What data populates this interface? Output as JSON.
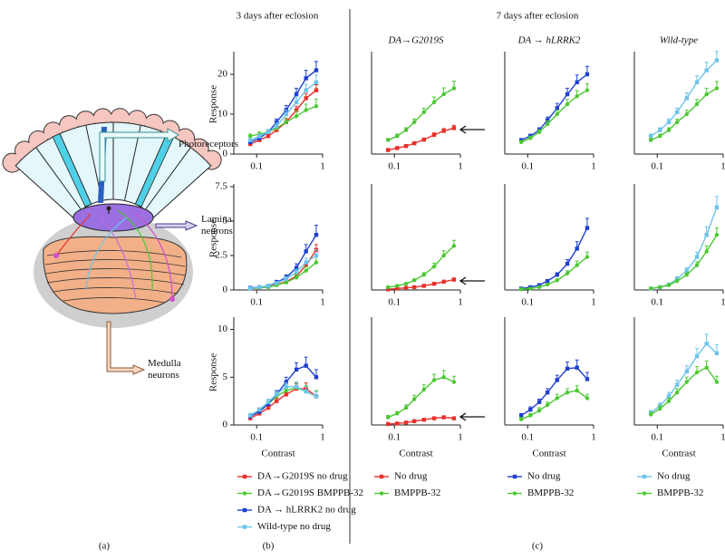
{
  "headers": {
    "day3": "3 days after eclosion",
    "day7": "7 days after eclosion"
  },
  "panel_labels": [
    "(a)",
    "(b)",
    "(c)"
  ],
  "diagram": {
    "labels": [
      "Photoreceptors",
      "Lamina neurons",
      "Medulla neurons"
    ]
  },
  "chart_data": [
    {
      "type": "line",
      "ylabel": "Response",
      "x": [
        0.08,
        0.11,
        0.15,
        0.2,
        0.28,
        0.4,
        0.56,
        0.8
      ],
      "xlim": [
        0.045,
        1
      ],
      "xticks": [
        0.1,
        1
      ],
      "log_x": true,
      "ylim": [
        0,
        25
      ],
      "yticks": [
        0,
        10,
        20
      ],
      "series": [
        {
          "color": "#e8302a",
          "marker": "square",
          "values": [
            2.5,
            3.5,
            4.5,
            6,
            8,
            11,
            14,
            16
          ],
          "errors": [
            0.3,
            0.4,
            0.5,
            0.6,
            0.8,
            1,
            1.2,
            1.4
          ]
        },
        {
          "color": "#4cc832",
          "marker": "circle",
          "values": [
            4.5,
            5,
            5.5,
            6.5,
            8,
            9.5,
            11,
            12
          ],
          "errors": [
            0.5,
            0.5,
            0.6,
            0.8,
            1,
            1.2,
            1.5,
            1.8
          ]
        },
        {
          "color": "#1f3fcf",
          "marker": "square",
          "values": [
            3,
            4,
            5.5,
            8,
            11,
            15,
            19,
            21
          ],
          "errors": [
            0.4,
            0.5,
            0.6,
            0.8,
            1.2,
            1.5,
            2,
            2.2
          ]
        },
        {
          "color": "#6cc4ea",
          "marker": "square",
          "values": [
            3.5,
            4.5,
            5.5,
            7,
            10,
            13,
            16,
            18
          ],
          "errors": [
            0.4,
            0.5,
            0.6,
            0.8,
            1,
            1.3,
            1.5,
            1.8
          ]
        }
      ]
    },
    {
      "type": "line",
      "ylabel": "Response",
      "x": [
        0.08,
        0.11,
        0.15,
        0.2,
        0.28,
        0.4,
        0.56,
        0.8
      ],
      "xlim": [
        0.045,
        1
      ],
      "xticks": [
        0.1,
        1
      ],
      "log_x": true,
      "ylim": [
        0,
        7.5
      ],
      "yticks": [
        0,
        2.5,
        5,
        7.5
      ],
      "series": [
        {
          "color": "#e8302a",
          "marker": "square",
          "values": [
            0.1,
            0.15,
            0.25,
            0.4,
            0.6,
            1,
            1.8,
            2.9
          ],
          "errors": [
            0.05,
            0.05,
            0.08,
            0.1,
            0.15,
            0.2,
            0.3,
            0.4
          ]
        },
        {
          "color": "#4cc832",
          "marker": "circle",
          "values": [
            0.1,
            0.15,
            0.2,
            0.35,
            0.55,
            0.9,
            1.4,
            2
          ],
          "errors": [
            0.05,
            0.05,
            0.08,
            0.1,
            0.15,
            0.2,
            0.3,
            0.4
          ]
        },
        {
          "color": "#1f3fcf",
          "marker": "square",
          "values": [
            0.15,
            0.2,
            0.3,
            0.55,
            0.9,
            1.6,
            2.8,
            4
          ],
          "errors": [
            0.05,
            0.06,
            0.1,
            0.15,
            0.2,
            0.3,
            0.5,
            0.7
          ]
        },
        {
          "color": "#6cc4ea",
          "marker": "square",
          "values": [
            0.1,
            0.2,
            0.3,
            0.5,
            0.8,
            1.3,
            2,
            2.5
          ],
          "errors": [
            0.05,
            0.05,
            0.08,
            0.1,
            0.15,
            0.2,
            0.3,
            0.4
          ]
        }
      ]
    },
    {
      "type": "line",
      "ylabel": "Response",
      "xlabel": "Contrast",
      "x": [
        0.08,
        0.11,
        0.15,
        0.2,
        0.28,
        0.4,
        0.56,
        0.8
      ],
      "xlim": [
        0.045,
        1
      ],
      "xticks": [
        0.1,
        1
      ],
      "log_x": true,
      "ylim": [
        0,
        11
      ],
      "yticks": [
        0,
        5,
        10
      ],
      "series": [
        {
          "name": "DA→G2019S no drug",
          "color": "#e8302a",
          "marker": "square",
          "values": [
            0.7,
            1.2,
            1.8,
            2.5,
            3.2,
            3.8,
            3.8,
            3
          ],
          "errors": [
            0.2,
            0.2,
            0.3,
            0.3,
            0.4,
            0.5,
            0.6,
            0.6
          ]
        },
        {
          "name": "DA→G2019S BMPPB-32",
          "color": "#4cc832",
          "marker": "circle",
          "values": [
            1,
            1.5,
            2.2,
            3,
            3.6,
            3.9,
            3.5,
            3
          ],
          "errors": [
            0.2,
            0.2,
            0.3,
            0.3,
            0.4,
            0.5,
            0.6,
            0.6
          ]
        },
        {
          "name": "DA → hLRRK2 no drug",
          "color": "#1f3fcf",
          "marker": "square",
          "values": [
            0.9,
            1.4,
            2.2,
            3.2,
            4.5,
            5.8,
            6.2,
            5
          ],
          "errors": [
            0.2,
            0.3,
            0.3,
            0.4,
            0.5,
            0.7,
            0.9,
            0.8
          ]
        },
        {
          "name": "Wild-type no drug",
          "color": "#6cc4ea",
          "marker": "square",
          "values": [
            1,
            1.6,
            2.4,
            3.2,
            4,
            4,
            3.5,
            3
          ],
          "errors": [
            0.2,
            0.2,
            0.3,
            0.3,
            0.4,
            0.5,
            0.5,
            0.5
          ]
        }
      ]
    },
    {
      "type": "line",
      "title": "DA→G2019S",
      "x": [
        0.08,
        0.11,
        0.15,
        0.2,
        0.28,
        0.4,
        0.56,
        0.8
      ],
      "xlim": [
        0.045,
        1
      ],
      "xticks": [
        0.1,
        1
      ],
      "log_x": true,
      "ylim": [
        0,
        25
      ],
      "series": [
        {
          "color": "#e8302a",
          "marker": "square",
          "values": [
            1,
            1.5,
            2,
            2.7,
            3.6,
            4.8,
            5.8,
            6.5
          ],
          "errors": [
            0.2,
            0.2,
            0.3,
            0.3,
            0.4,
            0.5,
            0.6,
            0.7
          ]
        },
        {
          "color": "#4cc832",
          "marker": "circle",
          "values": [
            3.5,
            4.5,
            6,
            8,
            10.5,
            13,
            15,
            16.5
          ],
          "errors": [
            0.4,
            0.5,
            0.6,
            0.8,
            1,
            1.3,
            1.6,
            1.8
          ]
        }
      ]
    },
    {
      "type": "line",
      "x": [
        0.08,
        0.11,
        0.15,
        0.2,
        0.28,
        0.4,
        0.56,
        0.8
      ],
      "xlim": [
        0.045,
        1
      ],
      "xticks": [
        0.1,
        1
      ],
      "log_x": true,
      "ylim": [
        0,
        7.5
      ],
      "series": [
        {
          "color": "#e8302a",
          "marker": "square",
          "values": [
            0.05,
            0.1,
            0.15,
            0.2,
            0.3,
            0.45,
            0.6,
            0.75
          ],
          "errors": [
            0.03,
            0.03,
            0.04,
            0.05,
            0.06,
            0.08,
            0.1,
            0.12
          ]
        },
        {
          "color": "#4cc832",
          "marker": "circle",
          "values": [
            0.2,
            0.3,
            0.45,
            0.7,
            1.1,
            1.7,
            2.5,
            3.2
          ],
          "errors": [
            0.05,
            0.06,
            0.08,
            0.1,
            0.15,
            0.25,
            0.35,
            0.4
          ]
        }
      ]
    },
    {
      "type": "line",
      "xlabel": "Contrast",
      "x": [
        0.08,
        0.11,
        0.15,
        0.2,
        0.28,
        0.4,
        0.56,
        0.8
      ],
      "xlim": [
        0.045,
        1
      ],
      "xticks": [
        0.1,
        1
      ],
      "log_x": true,
      "ylim": [
        0,
        11
      ],
      "series": [
        {
          "name": "No drug",
          "color": "#e8302a",
          "marker": "square",
          "values": [
            0.1,
            0.15,
            0.25,
            0.4,
            0.55,
            0.7,
            0.8,
            0.7
          ],
          "errors": [
            0.05,
            0.05,
            0.06,
            0.08,
            0.1,
            0.12,
            0.15,
            0.15
          ]
        },
        {
          "name": "BMPPB-32",
          "color": "#4cc832",
          "marker": "circle",
          "values": [
            0.8,
            1.2,
            1.8,
            2.7,
            3.7,
            4.7,
            5,
            4.5
          ],
          "errors": [
            0.2,
            0.2,
            0.3,
            0.4,
            0.5,
            0.6,
            0.7,
            0.6
          ]
        }
      ]
    },
    {
      "type": "line",
      "title": "DA → hLRRK2",
      "x": [
        0.08,
        0.11,
        0.15,
        0.2,
        0.28,
        0.4,
        0.56,
        0.8
      ],
      "xlim": [
        0.045,
        1
      ],
      "xticks": [
        0.1,
        1
      ],
      "log_x": true,
      "ylim": [
        0,
        25
      ],
      "series": [
        {
          "color": "#1f3fcf",
          "marker": "square",
          "values": [
            3.5,
            4.5,
            6,
            8.5,
            11.5,
            15,
            18,
            20
          ],
          "errors": [
            0.4,
            0.5,
            0.6,
            0.8,
            1.2,
            1.5,
            1.8,
            2
          ]
        },
        {
          "color": "#4cc832",
          "marker": "circle",
          "values": [
            3,
            4,
            5.5,
            7.5,
            10,
            12.5,
            14.5,
            16
          ],
          "errors": [
            0.4,
            0.5,
            0.6,
            0.8,
            1,
            1.2,
            1.4,
            1.6
          ]
        }
      ]
    },
    {
      "type": "line",
      "x": [
        0.08,
        0.11,
        0.15,
        0.2,
        0.28,
        0.4,
        0.56,
        0.8
      ],
      "xlim": [
        0.045,
        1
      ],
      "xticks": [
        0.1,
        1
      ],
      "log_x": true,
      "ylim": [
        0,
        7.5
      ],
      "series": [
        {
          "color": "#1f3fcf",
          "marker": "square",
          "values": [
            0.1,
            0.2,
            0.35,
            0.65,
            1.1,
            1.9,
            3,
            4.5
          ],
          "errors": [
            0.05,
            0.06,
            0.08,
            0.1,
            0.15,
            0.3,
            0.5,
            0.7
          ]
        },
        {
          "color": "#4cc832",
          "marker": "circle",
          "values": [
            0.05,
            0.1,
            0.2,
            0.4,
            0.7,
            1.2,
            1.8,
            2.4
          ],
          "errors": [
            0.03,
            0.05,
            0.06,
            0.08,
            0.1,
            0.2,
            0.3,
            0.35
          ]
        }
      ]
    },
    {
      "type": "line",
      "xlabel": "Contrast",
      "x": [
        0.08,
        0.11,
        0.15,
        0.2,
        0.28,
        0.4,
        0.56,
        0.8
      ],
      "xlim": [
        0.045,
        1
      ],
      "xticks": [
        0.1,
        1
      ],
      "log_x": true,
      "ylim": [
        0,
        11
      ],
      "series": [
        {
          "name": "No drug",
          "color": "#1f3fcf",
          "marker": "square",
          "values": [
            1,
            1.6,
            2.4,
            3.4,
            4.7,
            5.9,
            6,
            4.8
          ],
          "errors": [
            0.2,
            0.3,
            0.3,
            0.4,
            0.5,
            0.7,
            0.8,
            0.7
          ]
        },
        {
          "name": "BMPPB-32",
          "color": "#4cc832",
          "marker": "circle",
          "values": [
            0.6,
            1,
            1.5,
            2.1,
            2.8,
            3.4,
            3.6,
            2.8
          ],
          "errors": [
            0.2,
            0.2,
            0.3,
            0.3,
            0.4,
            0.4,
            0.5,
            0.4
          ]
        }
      ]
    },
    {
      "type": "line",
      "title": "Wild-type",
      "x": [
        0.08,
        0.11,
        0.15,
        0.2,
        0.28,
        0.4,
        0.56,
        0.8
      ],
      "xlim": [
        0.045,
        1
      ],
      "xticks": [
        0.1,
        1
      ],
      "log_x": true,
      "ylim": [
        0,
        25
      ],
      "series": [
        {
          "color": "#6cc4ea",
          "marker": "square",
          "values": [
            4.5,
            6,
            8,
            10.5,
            14,
            18,
            21,
            23.5
          ],
          "errors": [
            0.5,
            0.6,
            0.8,
            1,
            1.3,
            1.6,
            2,
            2.2
          ]
        },
        {
          "color": "#4cc832",
          "marker": "circle",
          "values": [
            3.5,
            4.5,
            6,
            8,
            10,
            12.5,
            15,
            16.5
          ],
          "errors": [
            0.4,
            0.5,
            0.6,
            0.8,
            1,
            1.2,
            1.5,
            1.7
          ]
        }
      ]
    },
    {
      "type": "line",
      "x": [
        0.08,
        0.11,
        0.15,
        0.2,
        0.28,
        0.4,
        0.56,
        0.8
      ],
      "xlim": [
        0.045,
        1
      ],
      "xticks": [
        0.1,
        1
      ],
      "log_x": true,
      "ylim": [
        0,
        7.5
      ],
      "series": [
        {
          "color": "#6cc4ea",
          "marker": "square",
          "values": [
            0.1,
            0.2,
            0.4,
            0.8,
            1.4,
            2.4,
            4,
            6
          ],
          "errors": [
            0.05,
            0.06,
            0.08,
            0.15,
            0.2,
            0.35,
            0.6,
            0.8
          ]
        },
        {
          "color": "#4cc832",
          "marker": "circle",
          "values": [
            0.1,
            0.2,
            0.35,
            0.65,
            1.1,
            1.8,
            2.8,
            4
          ],
          "errors": [
            0.05,
            0.06,
            0.08,
            0.1,
            0.15,
            0.25,
            0.4,
            0.5
          ]
        }
      ]
    },
    {
      "type": "line",
      "xlabel": "Contrast",
      "x": [
        0.08,
        0.11,
        0.15,
        0.2,
        0.28,
        0.4,
        0.56,
        0.8
      ],
      "xlim": [
        0.045,
        1
      ],
      "xticks": [
        0.1,
        1
      ],
      "log_x": true,
      "ylim": [
        0,
        11
      ],
      "series": [
        {
          "name": "No drug",
          "color": "#6cc4ea",
          "marker": "square",
          "values": [
            1.3,
            2,
            3,
            4.2,
            5.6,
            7.2,
            8.5,
            7.5
          ],
          "errors": [
            0.2,
            0.3,
            0.4,
            0.5,
            0.6,
            0.8,
            1,
            0.9
          ]
        },
        {
          "name": "BMPPB-32",
          "color": "#4cc832",
          "marker": "circle",
          "values": [
            1.1,
            1.7,
            2.5,
            3.4,
            4.5,
            5.5,
            6,
            4.5
          ],
          "errors": [
            0.2,
            0.3,
            0.3,
            0.4,
            0.5,
            0.6,
            0.7,
            0.6
          ]
        }
      ]
    }
  ]
}
